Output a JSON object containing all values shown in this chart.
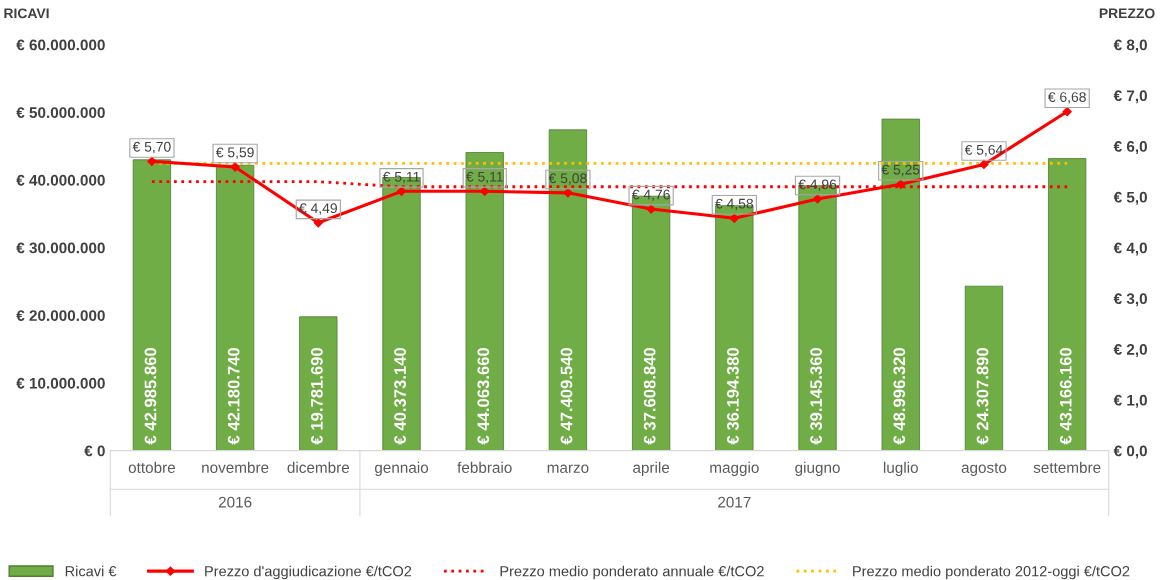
{
  "chart_data": {
    "type": "bar",
    "ylabel": "RICAVI",
    "y2label": "PREZZO",
    "categories": [
      "ottobre",
      "novembre",
      "dicembre",
      "gennaio",
      "febbraio",
      "marzo",
      "aprile",
      "maggio",
      "giugno",
      "luglio",
      "agosto",
      "settembre"
    ],
    "series": [
      {
        "name": "Ricavi €",
        "color": "#70ad47",
        "values": [
          42985860,
          42180740,
          19781690,
          40373140,
          44063660,
          47409540,
          37608840,
          36194380,
          39145360,
          48996320,
          24307890,
          43166160
        ],
        "value_labels": [
          "€ 42.985.860",
          "€ 42.180.740",
          "€ 19.781.690",
          "€ 40.373.140",
          "€ 44.063.660",
          "€ 47.409.540",
          "€ 37.608.840",
          "€ 36.194.380",
          "€ 39.145.360",
          "€ 48.996.320",
          "€ 24.307.890",
          "€ 43.166.160"
        ]
      },
      {
        "name": "Prezzo d'aggiudicazione €/tCO2",
        "type": "line",
        "axis": "y2",
        "color": "#ff0000",
        "marker": "diamond",
        "line_style": "solid",
        "values": [
          5.7,
          5.59,
          4.49,
          5.11,
          5.11,
          5.08,
          4.76,
          4.58,
          4.96,
          5.25,
          5.64,
          6.68
        ],
        "value_labels": [
          "€ 5,70",
          "€ 5,59",
          "€ 4,49",
          "€ 5,11",
          "€ 5,11",
          "€ 5,08",
          "€ 4,76",
          "€ 4,58",
          "€ 4,96",
          "€ 5,25",
          "€ 5,64",
          "€ 6,68"
        ]
      },
      {
        "name": "Prezzo medio ponderato annuale €/tCO2",
        "type": "line",
        "axis": "y2",
        "color": "#ff0000",
        "marker": "none",
        "line_style": "dotted",
        "values": [
          5.3,
          5.3,
          5.3,
          5.2,
          5.2,
          5.2,
          5.2,
          5.2,
          5.2,
          5.2,
          5.2,
          5.2
        ]
      },
      {
        "name": "Prezzo medio ponderato 2012-oggi €/tCO2",
        "type": "line",
        "axis": "y2",
        "color": "#ffc000",
        "marker": "none",
        "line_style": "dotted",
        "values": [
          5.66,
          5.66,
          5.66,
          5.66,
          5.66,
          5.66,
          5.66,
          5.66,
          5.66,
          5.66,
          5.66,
          5.66
        ]
      }
    ],
    "ylim": [
      0,
      60000000
    ],
    "yticks": [
      {
        "value": 0,
        "label": "€ 0"
      },
      {
        "value": 10000000,
        "label": "€ 10.000.000"
      },
      {
        "value": 20000000,
        "label": "€ 20.000.000"
      },
      {
        "value": 30000000,
        "label": "€ 30.000.000"
      },
      {
        "value": 40000000,
        "label": "€ 40.000.000"
      },
      {
        "value": 50000000,
        "label": "€ 50.000.000"
      },
      {
        "value": 60000000,
        "label": "€ 60.000.000"
      }
    ],
    "y2lim": [
      0,
      8
    ],
    "y2ticks": [
      {
        "value": 0,
        "label": "€ 0,0"
      },
      {
        "value": 1,
        "label": "€ 1,0"
      },
      {
        "value": 2,
        "label": "€ 2,0"
      },
      {
        "value": 3,
        "label": "€ 3,0"
      },
      {
        "value": 4,
        "label": "€ 4,0"
      },
      {
        "value": 5,
        "label": "€ 5,0"
      },
      {
        "value": 6,
        "label": "€ 6,0"
      },
      {
        "value": 7,
        "label": "€ 7,0"
      },
      {
        "value": 8,
        "label": "€ 8,0"
      }
    ],
    "annotations": [
      "2016",
      "2017"
    ],
    "grid": false,
    "legend": "bottom"
  }
}
